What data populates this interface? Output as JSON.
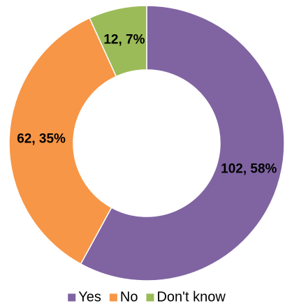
{
  "chart_data": {
    "type": "donut",
    "categories": [
      "Yes",
      "No",
      "Don't know"
    ],
    "values": [
      102,
      62,
      12
    ],
    "value_labels": [
      "102, 58%",
      "62, 35%",
      "12, 7%"
    ],
    "colors": [
      "#8064a2",
      "#f79646",
      "#9bbb59"
    ],
    "legend": "bottom"
  }
}
